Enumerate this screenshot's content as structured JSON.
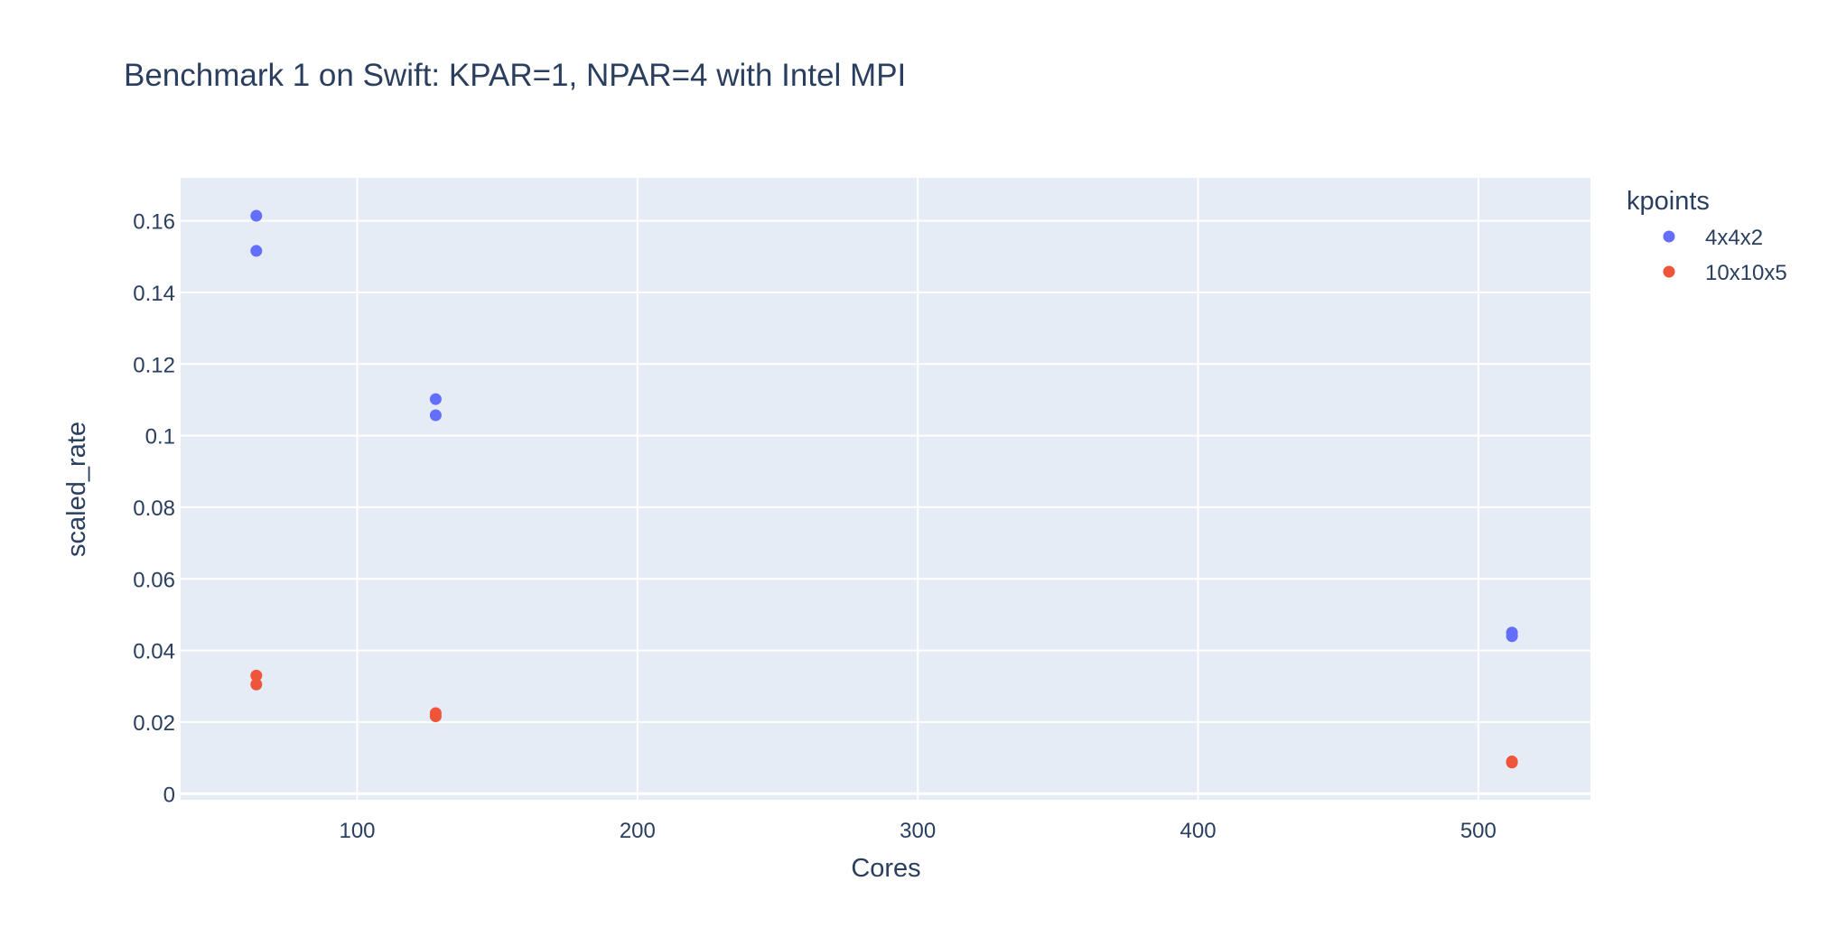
{
  "chart_data": {
    "type": "scatter",
    "title": "Benchmark 1 on Swift: KPAR=1, NPAR=4 with Intel MPI",
    "xlabel": "Cores",
    "ylabel": "scaled_rate",
    "xlim": [
      37,
      540
    ],
    "ylim": [
      -0.0017,
      0.172
    ],
    "x_ticks": [
      100,
      200,
      300,
      400,
      500
    ],
    "x_tick_labels": [
      "100",
      "200",
      "300",
      "400",
      "500"
    ],
    "y_ticks": [
      0,
      0.02,
      0.04,
      0.06,
      0.08,
      0.1,
      0.12,
      0.14,
      0.16
    ],
    "y_tick_labels": [
      "0",
      "0.02",
      "0.04",
      "0.06",
      "0.08",
      "0.1",
      "0.12",
      "0.14",
      "0.16"
    ],
    "grid": true,
    "legend": {
      "title": "kpoints",
      "placement": "right"
    },
    "series": [
      {
        "name": "4x4x2",
        "color": "#636efa",
        "points": [
          {
            "x": 64,
            "y": 0.1614
          },
          {
            "x": 64,
            "y": 0.1516
          },
          {
            "x": 128,
            "y": 0.1102
          },
          {
            "x": 128,
            "y": 0.1057
          },
          {
            "x": 512,
            "y": 0.045
          },
          {
            "x": 512,
            "y": 0.044
          }
        ]
      },
      {
        "name": "10x10x5",
        "color": "#EF553B",
        "points": [
          {
            "x": 64,
            "y": 0.033
          },
          {
            "x": 64,
            "y": 0.0305
          },
          {
            "x": 128,
            "y": 0.0225
          },
          {
            "x": 128,
            "y": 0.0216
          },
          {
            "x": 512,
            "y": 0.009
          },
          {
            "x": 512,
            "y": 0.0087
          }
        ]
      }
    ]
  }
}
